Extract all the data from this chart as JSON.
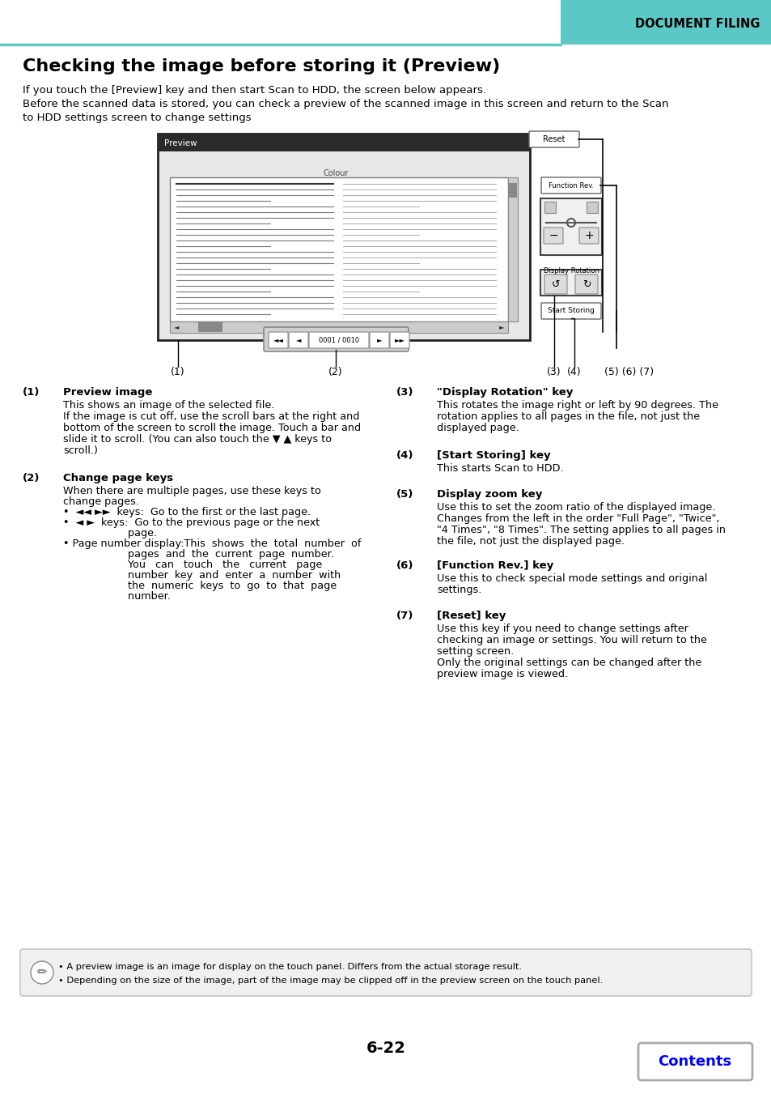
{
  "page_header_text": "DOCUMENT FILING",
  "header_bar_color": "#5BC8C5",
  "title": "Checking the image before storing it (Preview)",
  "intro_line1": "If you touch the [Preview] key and then start Scan to HDD, the screen below appears.",
  "intro_line2": "Before the scanned data is stored, you can check a preview of the scanned image in this screen and return to the Scan",
  "intro_line3": "to HDD settings screen to change settings",
  "note_lines": [
    "• A preview image is an image for display on the touch panel. Differs from the actual storage result.",
    "• Depending on the size of the image, part of the image may be clipped off in the preview screen on the touch panel."
  ],
  "page_number": "6-22",
  "contents_button_text": "Contents",
  "bg_color": "#ffffff",
  "text_color": "#000000",
  "header_text_color": "#000000",
  "teal_color": "#5BC8C5",
  "contents_btn_color": "#0000ff",
  "contents_btn_border": "#aaaaaa",
  "note_bg_color": "#f0f0f0",
  "note_border_color": "#bbbbbb"
}
